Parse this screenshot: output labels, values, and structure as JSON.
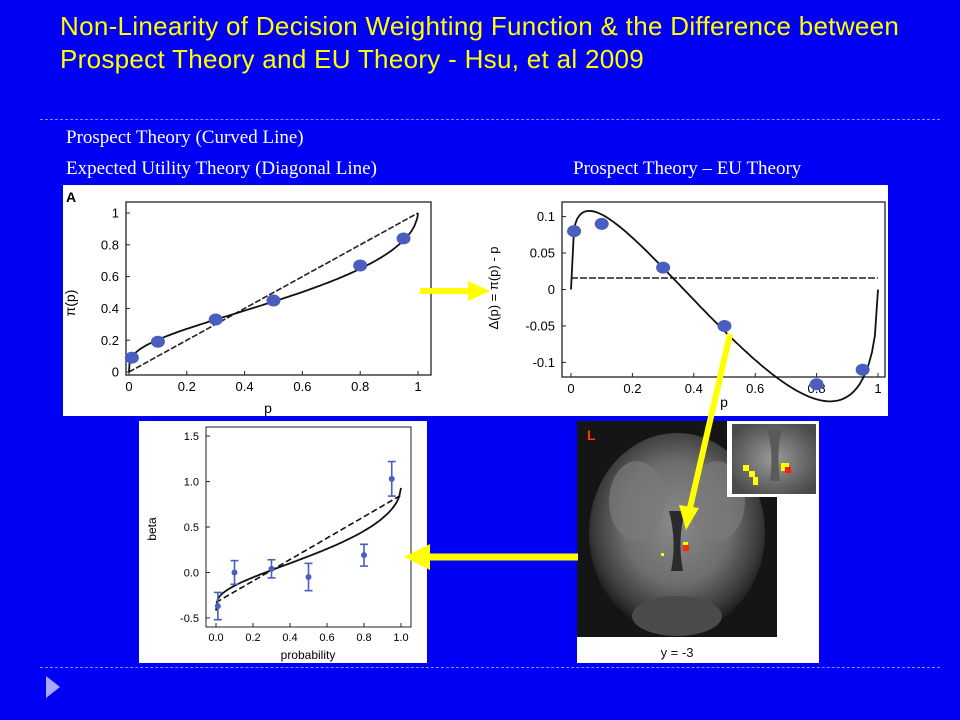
{
  "slide": {
    "title": "Non-Linearity of Decision Weighting Function & the Difference between Prospect Theory and EU Theory - Hsu, et al 2009",
    "subtitle_line1": "Prospect Theory (Curved Line)",
    "subtitle_line2": "Expected Utility Theory (Diagonal Line)",
    "subtitle_right": "Prospect Theory – EU Theory",
    "colors": {
      "background": "#0000f5",
      "title": "#ffff00",
      "arrow": "#ffff00",
      "marker": "#4a5ec0"
    }
  },
  "brain": {
    "orientation_label": "L",
    "slice_label": "y = -3"
  },
  "chart_data": [
    {
      "type": "line",
      "panel_label": "A",
      "xlabel": "p",
      "ylabel": "π(p)",
      "xlim": [
        0,
        1
      ],
      "ylim": [
        0,
        1
      ],
      "xticks": [
        "0",
        "0.2",
        "0.4",
        "0.6",
        "0.8",
        "1"
      ],
      "yticks": [
        "0",
        "0.2",
        "0.4",
        "0.6",
        "0.8",
        "1"
      ],
      "points": {
        "x": [
          0.01,
          0.1,
          0.3,
          0.5,
          0.8,
          0.95
        ],
        "y": [
          0.09,
          0.19,
          0.33,
          0.45,
          0.67,
          0.84
        ]
      }
    },
    {
      "type": "line",
      "xlabel": "p",
      "ylabel": "Δ(p) = π(p) - p",
      "xlim": [
        0,
        1
      ],
      "ylim": [
        -0.12,
        0.12
      ],
      "xticks": [
        "0",
        "0.2",
        "0.4",
        "0.6",
        "0.8",
        "1"
      ],
      "yticks": [
        "0.1",
        "0.05",
        "0",
        "-0.05",
        "-0.1"
      ],
      "points": {
        "x": [
          0.01,
          0.1,
          0.3,
          0.5,
          0.8,
          0.95
        ],
        "y": [
          0.08,
          0.09,
          0.03,
          -0.05,
          -0.13,
          -0.11
        ]
      }
    },
    {
      "type": "scatter",
      "xlabel": "probability",
      "ylabel": "beta",
      "xlim": [
        0,
        1
      ],
      "ylim": [
        -0.6,
        1.6
      ],
      "xticks": [
        "0.0",
        "0.2",
        "0.4",
        "0.6",
        "0.8",
        "1.0"
      ],
      "yticks": [
        "1.5",
        "1.0",
        "0.5",
        "0.0",
        "-0.5"
      ],
      "points": {
        "x": [
          0.01,
          0.1,
          0.3,
          0.5,
          0.8,
          0.95
        ],
        "y": [
          -0.37,
          0.0,
          0.04,
          -0.05,
          0.19,
          1.03
        ],
        "err": [
          0.15,
          0.13,
          0.1,
          0.15,
          0.12,
          0.19
        ]
      }
    }
  ]
}
